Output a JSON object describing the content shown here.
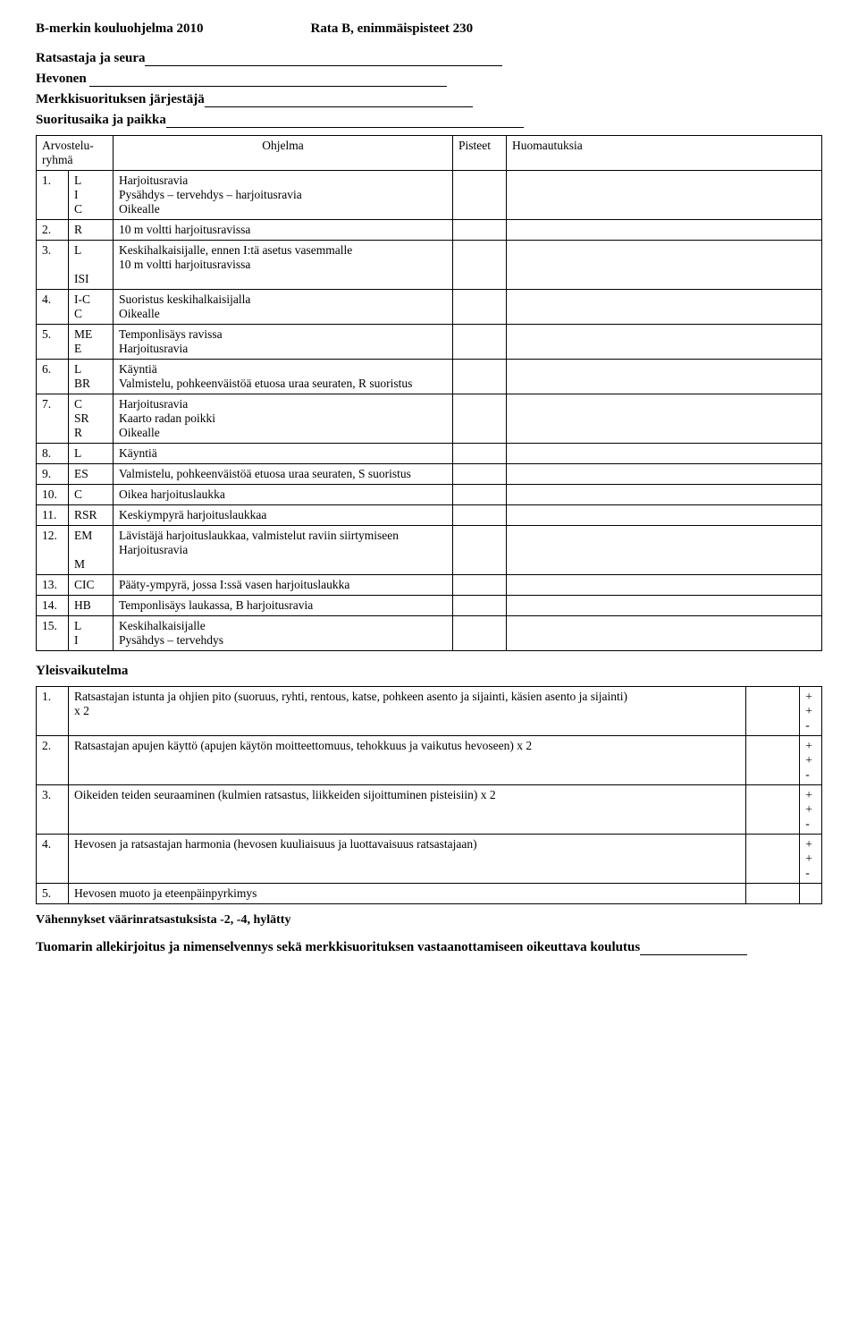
{
  "header": {
    "left": "B-merkin kouluohjelma 2010",
    "right": "Rata B, enimmäispisteet 230"
  },
  "fields": {
    "rider": "Ratsastaja ja seura",
    "horse": "Hevonen",
    "organizer": "Merkkisuorituksen järjestäjä",
    "timeplace": "Suoritusaika ja paikka"
  },
  "mainTable": {
    "headers": {
      "group": "Arvostelu-\nryhmä",
      "program": "Ohjelma",
      "points": "Pisteet",
      "notes": "Huomautuksia"
    },
    "rows": [
      {
        "n": "1.",
        "loc": "L\nI\nC",
        "desc": "Harjoitusravia\nPysähdys – tervehdys – harjoitusravia\nOikealle"
      },
      {
        "n": "2.",
        "loc": "R",
        "desc": "10 m voltti harjoitusravissa"
      },
      {
        "n": "3.",
        "loc": "L\n\nISI",
        "desc": "Keskihalkaisijalle, ennen I:tä asetus vasemmalle\n10 m voltti harjoitusravissa"
      },
      {
        "n": "4.",
        "loc": "I-C\nC",
        "desc": "Suoristus keskihalkaisijalla\nOikealle"
      },
      {
        "n": "5.",
        "loc": "ME\nE",
        "desc": "Temponlisäys ravissa\nHarjoitusravia"
      },
      {
        "n": "6.",
        "loc": "L\nBR",
        "desc": "Käyntiä\nValmistelu, pohkeenväistöä etuosa uraa seuraten, R suoristus"
      },
      {
        "n": "7.",
        "loc": "C\nSR\nR",
        "desc": "Harjoitusravia\nKaarto radan poikki\nOikealle"
      },
      {
        "n": "8.",
        "loc": "L",
        "desc": "Käyntiä"
      },
      {
        "n": "9.",
        "loc": "ES",
        "desc": "Valmistelu, pohkeenväistöä etuosa uraa seuraten, S suoristus"
      },
      {
        "n": "10.",
        "loc": "C",
        "desc": "Oikea harjoituslaukka"
      },
      {
        "n": "11.",
        "loc": "RSR",
        "desc": "Keskiympyrä harjoituslaukkaa"
      },
      {
        "n": "12.",
        "loc": "EM\n\nM",
        "desc": "Lävistäjä harjoituslaukkaa, valmistelut raviin siirtymiseen\nHarjoitusravia"
      },
      {
        "n": "13.",
        "loc": "CIC",
        "desc": "Pääty-ympyrä, jossa I:ssä vasen harjoituslaukka"
      },
      {
        "n": "14.",
        "loc": "HB",
        "desc": "Temponlisäys laukassa, B harjoitusravia"
      },
      {
        "n": "15.",
        "loc": "L\nI",
        "desc": "Keskihalkaisijalle\nPysähdys – tervehdys"
      }
    ]
  },
  "impression": {
    "title": "Yleisvaikutelma",
    "rows": [
      {
        "n": "1.",
        "desc": "Ratsastajan istunta ja ohjien pito (suoruus, ryhti, rentous, katse, pohkeen asento ja sijainti, käsien asento ja sijainti)\nx 2",
        "pm": "+\n+\n-"
      },
      {
        "n": "2.",
        "desc": "Ratsastajan apujen käyttö (apujen käytön moitteettomuus, tehokkuus ja vaikutus hevoseen)        x 2",
        "pm": "+\n+\n-"
      },
      {
        "n": "3.",
        "desc": "Oikeiden teiden seuraaminen (kulmien ratsastus, liikkeiden sijoittuminen pisteisiin)                               x 2",
        "pm": "+\n+\n-"
      },
      {
        "n": "4.",
        "desc": "Hevosen ja ratsastajan harmonia (hevosen kuuliaisuus ja luottavaisuus ratsastajaan)",
        "pm": "+\n+\n-"
      },
      {
        "n": "5.",
        "desc": "Hevosen muoto ja eteenpäinpyrkimys",
        "pm": ""
      }
    ]
  },
  "footer": {
    "deductions": "Vähennykset väärinratsastuksista -2, -4, hylätty",
    "signature": "Tuomarin allekirjoitus ja nimenselvennys sekä merkkisuorituksen vastaanottamiseen oikeuttava koulutus"
  }
}
